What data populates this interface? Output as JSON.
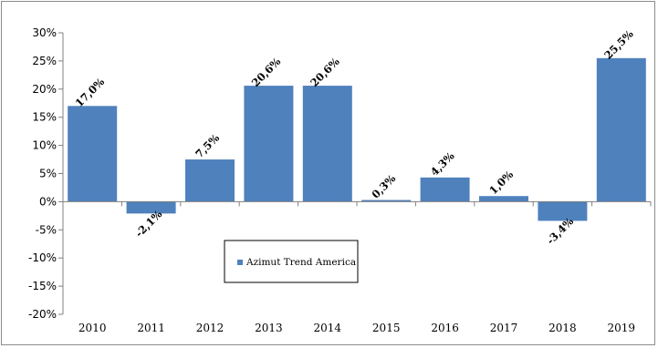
{
  "chart_data": {
    "type": "bar",
    "categories": [
      "2010",
      "2011",
      "2012",
      "2013",
      "2014",
      "2015",
      "2016",
      "2017",
      "2018",
      "2019"
    ],
    "series": [
      {
        "name": "Azimut Trend America",
        "values": [
          17.0,
          -2.1,
          7.5,
          20.6,
          20.6,
          0.3,
          4.3,
          1.0,
          -3.4,
          25.5
        ],
        "data_labels": [
          "17,0%",
          "-2,1%",
          "7,5%",
          "20,6%",
          "20,6%",
          "0,3%",
          "4,3%",
          "1,0%",
          "-3,4%",
          "25,5%"
        ]
      }
    ],
    "y_ticks": [
      "30%",
      "25%",
      "20%",
      "15%",
      "10%",
      "5%",
      "0%",
      "-5%",
      "-10%",
      "-15%",
      "-20%"
    ],
    "ylim": [
      -20,
      30
    ],
    "title": "",
    "xlabel": "",
    "ylabel": "",
    "grid": false,
    "legend": "bottom-left inside plot",
    "bar_color": "#4f81bd",
    "axis_color": "#808080"
  }
}
